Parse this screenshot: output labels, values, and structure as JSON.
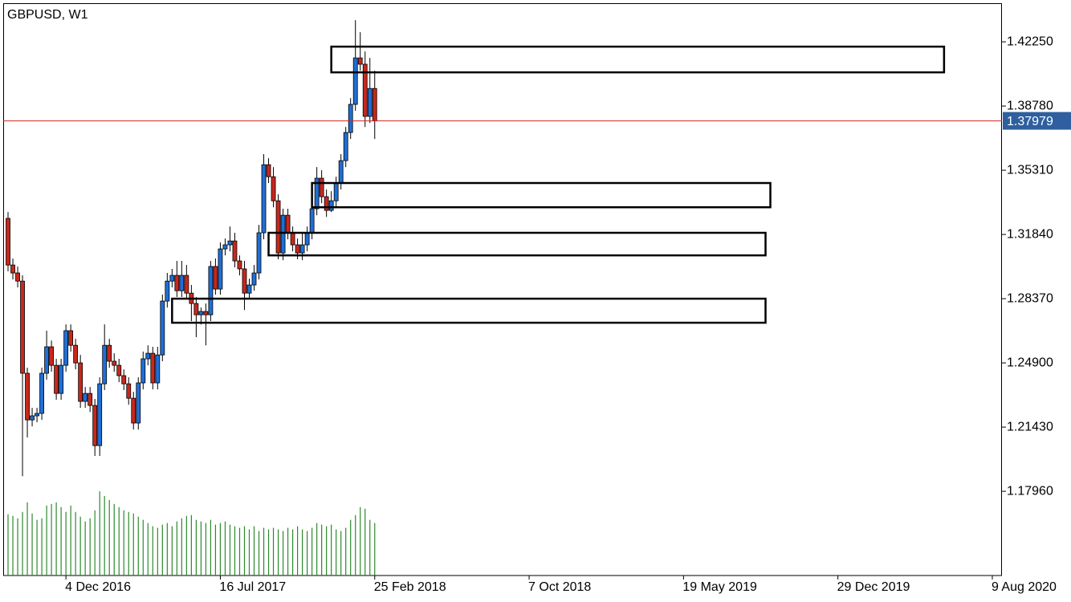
{
  "chart_data": {
    "type": "candlestick",
    "title": "GBPUSD, W1",
    "x": [
      "2016-09-11",
      "2016-09-18",
      "2016-09-25",
      "2016-10-02",
      "2016-10-09",
      "2016-10-16",
      "2016-10-23",
      "2016-10-30",
      "2016-11-06",
      "2016-11-13",
      "2016-11-20",
      "2016-11-27",
      "2016-12-04",
      "2016-12-11",
      "2016-12-18",
      "2016-12-25",
      "2017-01-01",
      "2017-01-08",
      "2017-01-15",
      "2017-01-22",
      "2017-01-29",
      "2017-02-05",
      "2017-02-12",
      "2017-02-19",
      "2017-02-26",
      "2017-03-05",
      "2017-03-12",
      "2017-03-19",
      "2017-03-26",
      "2017-04-02",
      "2017-04-09",
      "2017-04-16",
      "2017-04-23",
      "2017-04-30",
      "2017-05-07",
      "2017-05-14",
      "2017-05-21",
      "2017-05-28",
      "2017-06-04",
      "2017-06-11",
      "2017-06-18",
      "2017-06-25",
      "2017-07-02",
      "2017-07-09",
      "2017-07-16",
      "2017-07-23",
      "2017-07-30",
      "2017-08-06",
      "2017-08-13",
      "2017-08-20",
      "2017-08-27",
      "2017-09-03",
      "2017-09-10",
      "2017-09-17",
      "2017-09-24",
      "2017-10-01",
      "2017-10-08",
      "2017-10-15",
      "2017-10-22",
      "2017-10-29",
      "2017-11-05",
      "2017-11-12",
      "2017-11-19",
      "2017-11-26",
      "2017-12-03",
      "2017-12-10",
      "2017-12-17",
      "2017-12-24",
      "2017-12-31",
      "2018-01-07",
      "2018-01-14",
      "2018-01-21",
      "2018-01-28",
      "2018-02-04",
      "2018-02-11",
      "2018-02-18",
      "2018-02-25"
    ],
    "open": [
      1.3271,
      1.3019,
      1.2976,
      1.2932,
      1.2434,
      1.2182,
      1.2204,
      1.2217,
      1.2434,
      1.2577,
      1.2477,
      1.2325,
      1.2477,
      1.2664,
      1.2585,
      1.249,
      1.2282,
      1.2325,
      1.226,
      1.2043,
      1.2377,
      1.2585,
      1.2499,
      1.2477,
      1.2421,
      1.2377,
      1.2299,
      1.2165,
      1.2382,
      1.2512,
      1.2542,
      1.2382,
      1.2533,
      1.2824,
      1.2932,
      1.2963,
      1.288,
      1.2963,
      1.2867,
      1.2811,
      1.275,
      1.2768,
      1.275,
      1.3011,
      1.2889,
      1.3106,
      1.3128,
      1.3149,
      1.3041,
      1.2998,
      1.2867,
      1.2911,
      1.2976,
      1.3193,
      1.3561,
      1.3496,
      1.3366,
      1.3084,
      1.3288,
      1.3193,
      1.3128,
      1.3084,
      1.3128,
      1.3193,
      1.3323,
      1.3488,
      1.3388,
      1.3314,
      1.3366,
      1.3462,
      1.3583,
      1.3735,
      1.3887,
      1.4138,
      1.4104,
      1.3822,
      1.3973
    ],
    "high": [
      1.3305,
      1.3054,
      1.3011,
      1.2963,
      1.2464,
      1.2247,
      1.2247,
      1.2464,
      1.2664,
      1.2611,
      1.2512,
      1.2512,
      1.2698,
      1.2698,
      1.262,
      1.2533,
      1.236,
      1.236,
      1.2295,
      1.2412,
      1.2698,
      1.262,
      1.2542,
      1.2512,
      1.2455,
      1.2412,
      1.2334,
      1.2412,
      1.2551,
      1.2585,
      1.2577,
      1.2577,
      1.2859,
      1.2976,
      1.2998,
      1.3041,
      1.3041,
      1.3019,
      1.2911,
      1.2846,
      1.2789,
      1.2811,
      1.3041,
      1.3054,
      1.3141,
      1.3162,
      1.3227,
      1.3193,
      1.3071,
      1.3041,
      1.2945,
      1.3019,
      1.3236,
      1.3618,
      1.3596,
      1.3548,
      1.3401,
      1.3323,
      1.3323,
      1.3227,
      1.3162,
      1.3193,
      1.3227,
      1.3358,
      1.3548,
      1.3531,
      1.3427,
      1.3418,
      1.3496,
      1.3618,
      1.3765,
      1.3921,
      1.4342,
      1.4277,
      1.4173,
      1.4138,
      1.4069
    ],
    "low": [
      1.2985,
      1.2941,
      1.2898,
      1.1878,
      1.2087,
      1.2147,
      1.2169,
      1.2182,
      1.2399,
      1.2442,
      1.2291,
      1.2291,
      1.2442,
      1.2551,
      1.2455,
      1.2247,
      1.2247,
      1.2225,
      1.1987,
      1.1987,
      1.2343,
      1.2464,
      1.2442,
      1.2386,
      1.2343,
      1.2264,
      1.213,
      1.213,
      1.2347,
      1.2477,
      1.2347,
      1.2347,
      1.2499,
      1.2789,
      1.2898,
      1.2846,
      1.2846,
      1.2833,
      1.2716,
      1.2629,
      1.2698,
      1.2585,
      1.2716,
      1.2859,
      1.2859,
      1.3071,
      1.3093,
      1.3006,
      1.2963,
      1.2776,
      1.2833,
      1.288,
      1.2941,
      1.3158,
      1.3462,
      1.3331,
      1.305,
      1.3045,
      1.3158,
      1.3093,
      1.305,
      1.3045,
      1.3093,
      1.3158,
      1.3288,
      1.3353,
      1.3279,
      1.3305,
      1.3331,
      1.3427,
      1.3548,
      1.37,
      1.3852,
      1.4069,
      1.3765,
      1.3787,
      1.37
    ],
    "close": [
      1.3019,
      1.2976,
      1.2932,
      1.2434,
      1.2182,
      1.2204,
      1.2217,
      1.2434,
      1.2577,
      1.2477,
      1.2325,
      1.2477,
      1.2664,
      1.2585,
      1.249,
      1.2282,
      1.2325,
      1.226,
      1.2043,
      1.2377,
      1.2585,
      1.2499,
      1.2477,
      1.2421,
      1.2377,
      1.2299,
      1.2165,
      1.2382,
      1.2512,
      1.2542,
      1.2382,
      1.2533,
      1.2824,
      1.2932,
      1.2963,
      1.288,
      1.2963,
      1.2867,
      1.2811,
      1.275,
      1.2768,
      1.275,
      1.3011,
      1.2889,
      1.3106,
      1.3128,
      1.3149,
      1.3041,
      1.2998,
      1.2867,
      1.2911,
      1.2976,
      1.3193,
      1.3561,
      1.3496,
      1.3366,
      1.3084,
      1.3288,
      1.3193,
      1.3128,
      1.3084,
      1.3128,
      1.3193,
      1.3323,
      1.3488,
      1.3388,
      1.3314,
      1.3366,
      1.3462,
      1.3583,
      1.3735,
      1.3887,
      1.4138,
      1.4104,
      1.3822,
      1.3973,
      1.3798
    ],
    "volume": [
      77,
      75,
      72,
      80,
      92,
      78,
      70,
      72,
      88,
      90,
      92,
      86,
      80,
      88,
      80,
      74,
      68,
      72,
      82,
      106,
      100,
      95,
      90,
      86,
      82,
      80,
      78,
      74,
      70,
      66,
      62,
      60,
      64,
      66,
      62,
      68,
      72,
      75,
      76,
      70,
      68,
      66,
      70,
      64,
      66,
      68,
      64,
      62,
      60,
      62,
      58,
      62,
      56,
      60,
      58,
      60,
      58,
      56,
      60,
      58,
      62,
      58,
      56,
      60,
      66,
      64,
      62,
      64,
      58,
      56,
      60,
      70,
      76,
      86,
      84,
      70,
      66
    ],
    "up_color": "#1f6fd6",
    "down_color": "#c8281e",
    "volume_color": "#2c8a2c",
    "xlim": [
      "2016-09-04",
      "2020-08-23"
    ],
    "xticks": [
      {
        "value": "2016-12-04",
        "label": "4 Dec 2016"
      },
      {
        "value": "2017-07-16",
        "label": "16 Jul 2017"
      },
      {
        "value": "2018-02-25",
        "label": "25 Feb 2018"
      },
      {
        "value": "2018-10-07",
        "label": "7 Oct 2018"
      },
      {
        "value": "2019-05-19",
        "label": "19 May 2019"
      },
      {
        "value": "2019-12-29",
        "label": "29 Dec 2019"
      },
      {
        "value": "2020-08-09",
        "label": "9 Aug 2020"
      }
    ],
    "ylim": [
      1.1341,
      1.4451
    ],
    "yticks": [
      {
        "value": 1.4225,
        "label": "1.42250"
      },
      {
        "value": 1.3878,
        "label": "1.38780"
      },
      {
        "value": 1.3531,
        "label": "1.35310"
      },
      {
        "value": 1.3184,
        "label": "1.31840"
      },
      {
        "value": 1.2837,
        "label": "1.28370"
      },
      {
        "value": 1.249,
        "label": "1.24900"
      },
      {
        "value": 1.2143,
        "label": "1.21430"
      },
      {
        "value": 1.1796,
        "label": "1.17960"
      }
    ],
    "current_price": {
      "value": 1.37979,
      "label": "1.37979"
    },
    "zones": [
      {
        "x": [
          "2017-12-24",
          "2020-05-31"
        ],
        "y": [
          1.406,
          1.4199
        ]
      },
      {
        "x": [
          "2017-11-26",
          "2019-09-22"
        ],
        "y": [
          1.3331,
          1.3462
        ]
      },
      {
        "x": [
          "2017-09-24",
          "2019-09-15"
        ],
        "y": [
          1.3071,
          1.3193
        ]
      },
      {
        "x": [
          "2017-05-07",
          "2019-09-15"
        ],
        "y": [
          1.2707,
          1.2837
        ]
      }
    ]
  }
}
